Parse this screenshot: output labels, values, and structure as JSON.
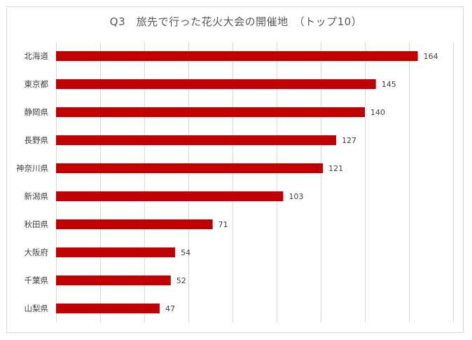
{
  "chart_data": {
    "type": "bar",
    "orientation": "horizontal",
    "title": "Q3　旅先で行った花火大会の開催地　（トップ10）",
    "categories": [
      "北海道",
      "東京都",
      "静岡県",
      "長野県",
      "神奈川県",
      "新潟県",
      "秋田県",
      "大阪府",
      "千葉県",
      "山梨県"
    ],
    "values": [
      164,
      145,
      140,
      127,
      121,
      103,
      71,
      54,
      52,
      47
    ],
    "xlim": [
      0,
      180
    ],
    "grid": true,
    "legend": "none",
    "bar_color": "#c00000",
    "xlabel": "",
    "ylabel": ""
  }
}
